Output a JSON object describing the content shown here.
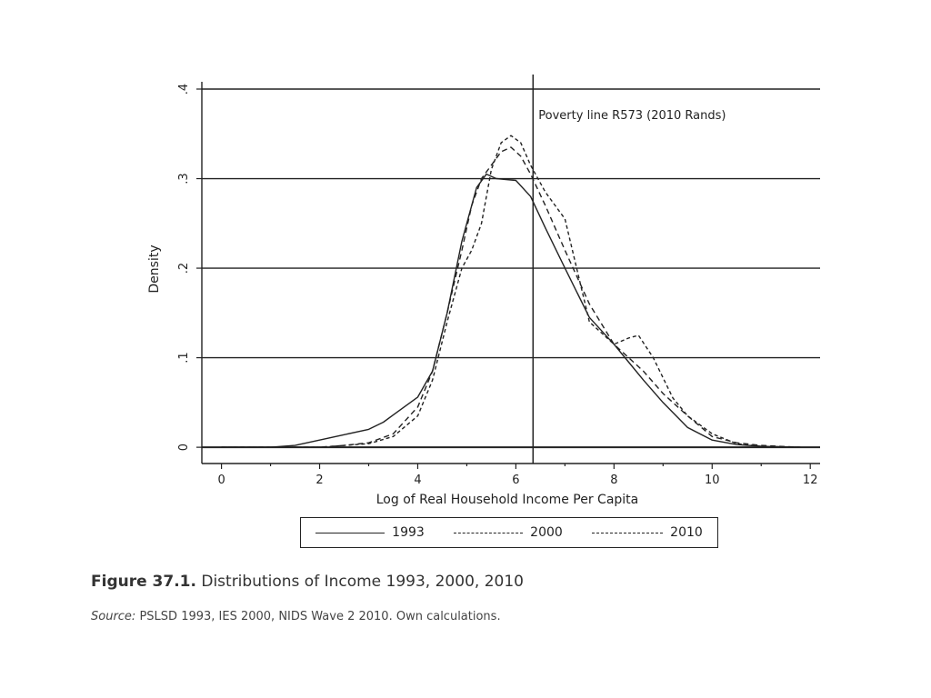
{
  "chart_data": {
    "type": "line",
    "ylabel": "Density",
    "xlabel": "Log of Real Household Income Per Capita",
    "xlim": [
      -0.4,
      12.2
    ],
    "ylim": [
      -0.008,
      0.4
    ],
    "x_ticks": [
      0,
      2,
      4,
      6,
      8,
      10,
      12
    ],
    "y_ticks": [
      0,
      0.1,
      0.2,
      0.3,
      0.4
    ],
    "y_tick_labels": [
      "0",
      ".1",
      ".2",
      ".3",
      ".4"
    ],
    "grid": "horizontal",
    "reference_line": {
      "x": 6.35,
      "label": "Poverty line R573 (2010 Rands)"
    },
    "series": [
      {
        "name": "1993",
        "style": "solid",
        "x": [
          0,
          1,
          1.5,
          2,
          2.5,
          3,
          3.3,
          3.5,
          4,
          4.3,
          4.6,
          4.9,
          5.2,
          5.4,
          5.6,
          6.0,
          6.3,
          6.6,
          7.0,
          7.5,
          8.0,
          8.3,
          8.6,
          9.0,
          9.5,
          10,
          10.5,
          11,
          11.8
        ],
        "y": [
          0,
          0,
          0.002,
          0.008,
          0.014,
          0.02,
          0.028,
          0.036,
          0.056,
          0.085,
          0.15,
          0.23,
          0.29,
          0.305,
          0.3,
          0.298,
          0.28,
          0.245,
          0.2,
          0.145,
          0.115,
          0.095,
          0.075,
          0.05,
          0.022,
          0.008,
          0.003,
          0.001,
          0
        ]
      },
      {
        "name": "2000",
        "style": "dashed",
        "x": [
          0,
          2,
          2.5,
          3,
          3.5,
          4,
          4.3,
          4.6,
          4.9,
          5.1,
          5.3,
          5.5,
          5.7,
          5.9,
          6.1,
          6.3,
          6.6,
          7.0,
          7.5,
          8.0,
          8.3,
          8.6,
          9.0,
          9.5,
          10,
          10.5,
          11,
          11.8
        ],
        "y": [
          0,
          0,
          0.002,
          0.005,
          0.015,
          0.045,
          0.085,
          0.15,
          0.22,
          0.27,
          0.3,
          0.315,
          0.33,
          0.335,
          0.325,
          0.305,
          0.27,
          0.22,
          0.16,
          0.115,
          0.1,
          0.085,
          0.06,
          0.035,
          0.012,
          0.005,
          0.002,
          0
        ]
      },
      {
        "name": "2010",
        "style": "dash",
        "x": [
          0,
          2,
          2.5,
          3,
          3.5,
          4,
          4.3,
          4.6,
          4.9,
          5.1,
          5.3,
          5.5,
          5.7,
          5.9,
          6.1,
          6.3,
          6.6,
          7.0,
          7.5,
          8.0,
          8.3,
          8.5,
          8.8,
          9.2,
          9.5,
          10,
          10.5,
          11,
          11.8
        ],
        "y": [
          0,
          0,
          0.002,
          0.004,
          0.012,
          0.035,
          0.075,
          0.14,
          0.2,
          0.22,
          0.25,
          0.31,
          0.34,
          0.348,
          0.34,
          0.315,
          0.285,
          0.255,
          0.14,
          0.115,
          0.122,
          0.125,
          0.1,
          0.055,
          0.035,
          0.015,
          0.004,
          0.001,
          0
        ]
      }
    ]
  },
  "caption": {
    "figure_label": "Figure 37.1.",
    "title": "Distributions of Income 1993, 2000, 2010"
  },
  "source": {
    "label": "Source:",
    "text": "PSLSD 1993, IES 2000, NIDS Wave 2 2010. Own calculations."
  }
}
